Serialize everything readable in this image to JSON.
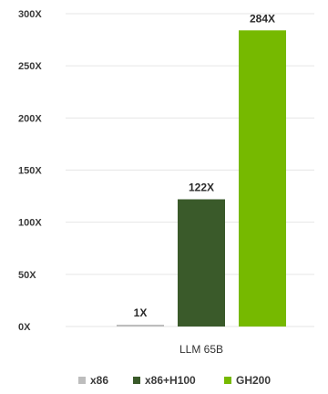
{
  "chart_data": {
    "type": "bar",
    "categories": [
      "LLM 65B"
    ],
    "series": [
      {
        "name": "x86",
        "values": [
          1
        ],
        "color": "#bdbdbd",
        "label": "1X"
      },
      {
        "name": "x86+H100",
        "values": [
          122
        ],
        "color": "#3a5a2a",
        "label": "122X"
      },
      {
        "name": "GH200",
        "values": [
          284
        ],
        "color": "#76b900",
        "label": "284X"
      }
    ],
    "y_ticks": [
      "0X",
      "50X",
      "100X",
      "150X",
      "200X",
      "250X",
      "300X"
    ],
    "y_tick_values": [
      0,
      50,
      100,
      150,
      200,
      250,
      300
    ],
    "ylim": [
      0,
      300
    ],
    "grid": true,
    "legend_position": "bottom"
  }
}
